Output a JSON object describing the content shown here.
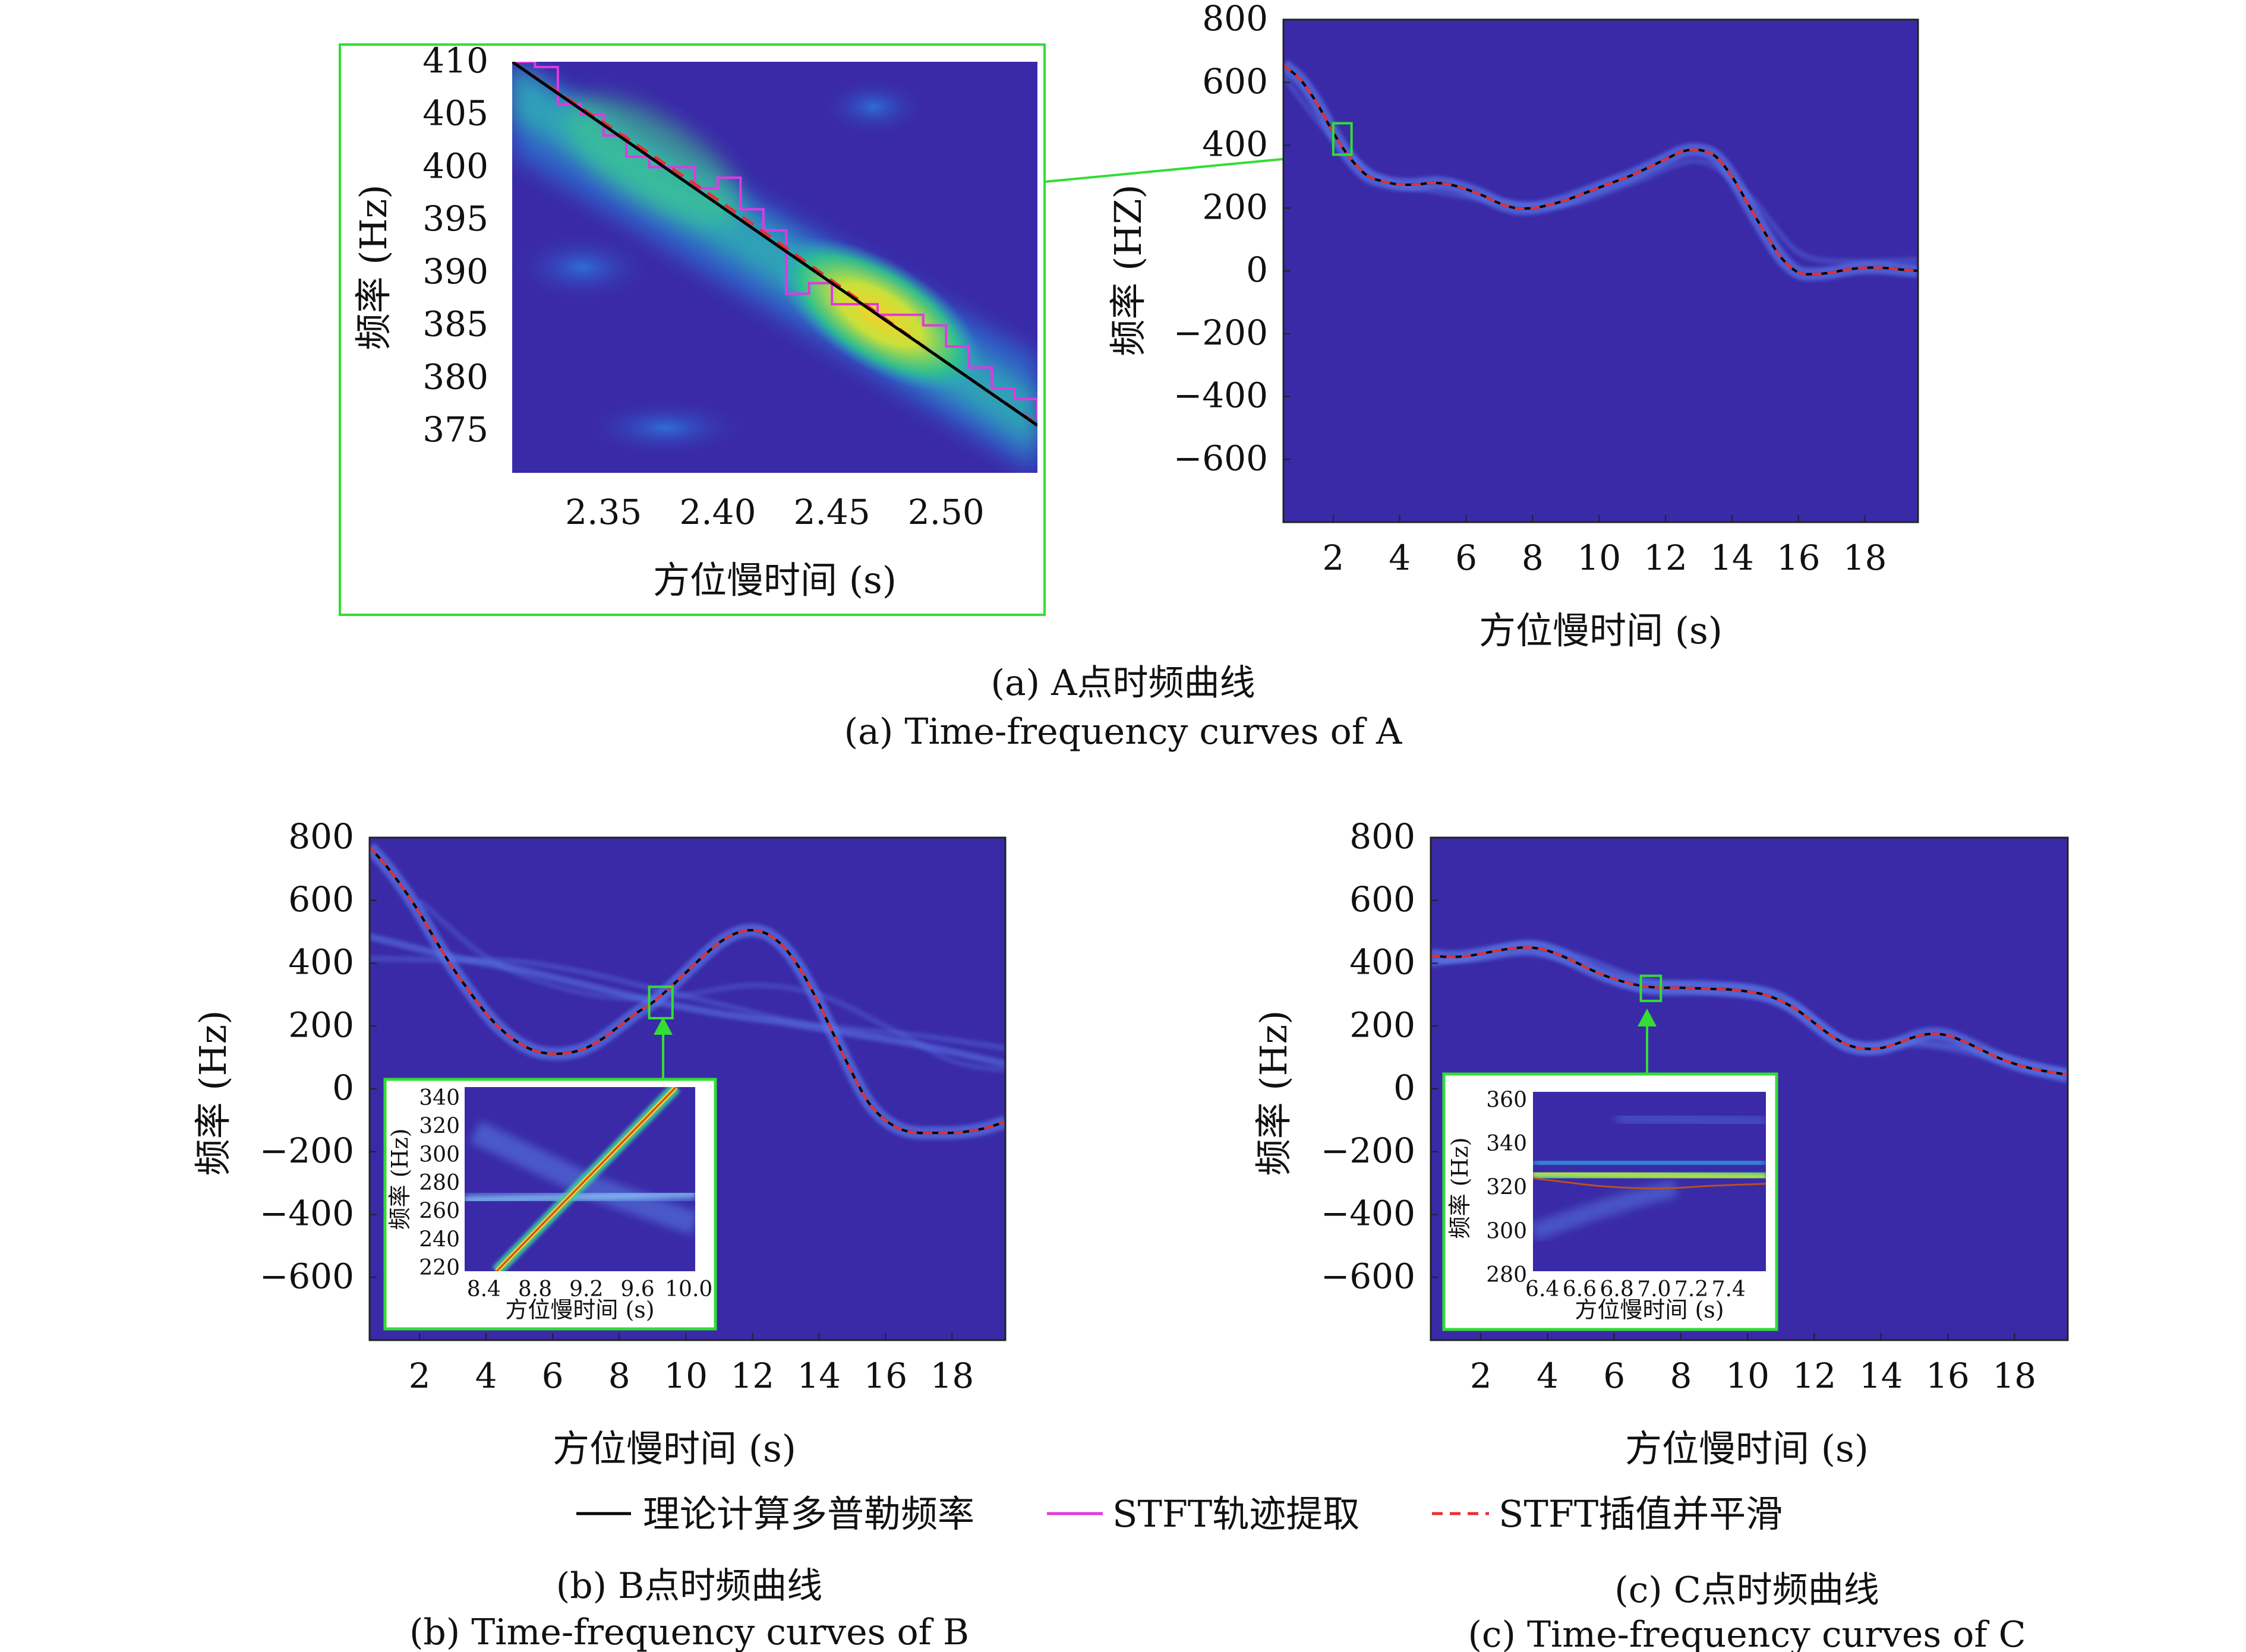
{
  "colors": {
    "background": "#3a2aa8",
    "theoretical": "#000000",
    "stft": "#e238e2",
    "smoothed": "#e83030",
    "zoom_box": "#33dd33",
    "track_glow": "#5a78e8"
  },
  "captions": {
    "a_cn": "(a) A点时频曲线",
    "a_en": "(a) Time-frequency curves of A",
    "b_cn": "(b) B点时频曲线",
    "b_en": "(b) Time-frequency curves of B",
    "c_cn": "(c) C点时频曲线",
    "c_en": "(c) Time-frequency curves of C"
  },
  "legend": [
    {
      "label": "理论计算多普勒频率",
      "style": "solid",
      "color": "#000000"
    },
    {
      "label": "STFT轨迹提取",
      "style": "solid",
      "color": "#e238e2"
    },
    {
      "label": "STFT插值并平滑",
      "style": "dashed",
      "color": "#e83030"
    }
  ],
  "chart_data": [
    {
      "id": "a_zoom",
      "type": "heatmap",
      "xlabel": "方位慢时间 (s)",
      "ylabel": "频率 (Hz)",
      "xlim": [
        2.31,
        2.54
      ],
      "ylim": [
        371,
        410
      ],
      "x_ticks": [
        "2.35",
        "2.40",
        "2.45",
        "2.50"
      ],
      "y_ticks": [
        "410",
        "405",
        "400",
        "395",
        "390",
        "385",
        "380",
        "375"
      ],
      "grid": false,
      "series": [
        {
          "name": "理论计算多普勒频率",
          "x": [
            2.31,
            2.54
          ],
          "y": [
            410,
            375.5
          ]
        },
        {
          "name": "STFT插值并平滑",
          "x": [
            2.31,
            2.4,
            2.5,
            2.54
          ],
          "y": [
            410,
            396.9,
            381.5,
            375.6
          ]
        },
        {
          "name": "STFT轨迹提取",
          "x": [
            2.31,
            2.32,
            2.33,
            2.34,
            2.35,
            2.36,
            2.37,
            2.38,
            2.39,
            2.4,
            2.41,
            2.42,
            2.43,
            2.44,
            2.45,
            2.46,
            2.47,
            2.48,
            2.49,
            2.5,
            2.51,
            2.52,
            2.53,
            2.54
          ],
          "y": [
            410,
            409.5,
            406,
            405,
            403,
            401,
            400,
            400,
            398,
            399,
            396,
            394,
            388,
            389,
            387,
            387,
            386,
            386,
            385,
            383,
            381,
            379,
            378,
            376
          ]
        }
      ]
    },
    {
      "id": "a_main",
      "type": "line",
      "xlabel": "方位慢时间 (s)",
      "ylabel": "频率 (HZ)",
      "xlim": [
        0.5,
        19.6
      ],
      "ylim": [
        -800,
        800
      ],
      "x_ticks": [
        "2",
        "4",
        "6",
        "8",
        "10",
        "12",
        "14",
        "16",
        "18"
      ],
      "y_ticks": [
        "800",
        "600",
        "400",
        "200",
        "0",
        "−200",
        "−400",
        "−600"
      ],
      "grid": false,
      "zoom_box": {
        "x": [
          2.0,
          2.55
        ],
        "y": [
          370,
          470
        ]
      },
      "series": [
        {
          "name": "STFT插值并平滑",
          "x": [
            0.5,
            1.0,
            1.5,
            2.0,
            2.5,
            3.0,
            3.5,
            4.0,
            4.5,
            5.0,
            5.5,
            6.0,
            6.5,
            7.0,
            7.5,
            8.0,
            8.5,
            9.0,
            9.5,
            10.0,
            10.5,
            11.0,
            11.5,
            12.0,
            12.5,
            13.0,
            13.5,
            14.0,
            14.5,
            15.0,
            15.5,
            16.0,
            16.5,
            17.0,
            17.5,
            18.0,
            18.5,
            19.0,
            19.6
          ],
          "y": [
            655,
            610,
            535,
            440,
            360,
            305,
            285,
            275,
            275,
            280,
            275,
            260,
            240,
            215,
            200,
            200,
            210,
            225,
            245,
            265,
            285,
            305,
            330,
            355,
            380,
            385,
            365,
            300,
            210,
            120,
            40,
            -5,
            -10,
            -5,
            5,
            10,
            10,
            5,
            0
          ]
        }
      ]
    },
    {
      "id": "b_main",
      "type": "line",
      "xlabel": "方位慢时间 (s)",
      "ylabel": "频率 (Hz)",
      "xlim": [
        0.5,
        19.6
      ],
      "ylim": [
        -800,
        800
      ],
      "x_ticks": [
        "2",
        "4",
        "6",
        "8",
        "10",
        "12",
        "14",
        "16",
        "18"
      ],
      "y_ticks": [
        "800",
        "600",
        "400",
        "200",
        "0",
        "−200",
        "−400",
        "−600"
      ],
      "grid": false,
      "zoom_box": {
        "x": [
          8.9,
          9.6
        ],
        "y": [
          225,
          325
        ]
      },
      "series": [
        {
          "name": "STFT插值并平滑",
          "x": [
            0.5,
            1.0,
            1.5,
            2.0,
            2.5,
            3.0,
            3.5,
            4.0,
            4.5,
            5.0,
            5.5,
            6.0,
            6.5,
            7.0,
            7.5,
            8.0,
            8.5,
            9.0,
            9.5,
            10.0,
            10.5,
            11.0,
            11.5,
            12.0,
            12.5,
            13.0,
            13.5,
            14.0,
            14.5,
            15.0,
            15.5,
            16.0,
            16.5,
            17.0,
            17.5,
            18.0,
            18.5,
            19.0,
            19.6
          ],
          "y": [
            770,
            710,
            640,
            560,
            470,
            385,
            310,
            240,
            185,
            145,
            120,
            112,
            115,
            130,
            160,
            200,
            240,
            275,
            320,
            370,
            420,
            465,
            495,
            505,
            490,
            445,
            370,
            270,
            160,
            50,
            -45,
            -100,
            -130,
            -140,
            -140,
            -140,
            -135,
            -125,
            -105
          ]
        }
      ]
    },
    {
      "id": "b_zoom",
      "type": "heatmap",
      "xlabel": "方位慢时间 (s)",
      "ylabel": "频率 (Hz)",
      "xlim": [
        8.25,
        10.05
      ],
      "ylim": [
        215,
        345
      ],
      "x_ticks": [
        "8.4",
        "8.8",
        "9.2",
        "9.6",
        "10.0"
      ],
      "y_ticks": [
        "340",
        "320",
        "300",
        "280",
        "260",
        "240",
        "220"
      ],
      "grid": false,
      "series": [
        {
          "name": "STFT插值并平滑",
          "x": [
            8.5,
            9.9
          ],
          "y": [
            215,
            345
          ]
        }
      ]
    },
    {
      "id": "c_main",
      "type": "line",
      "xlabel": "方位慢时间 (s)",
      "ylabel": "频率 (Hz)",
      "xlim": [
        0.5,
        19.6
      ],
      "ylim": [
        -800,
        800
      ],
      "x_ticks": [
        "2",
        "4",
        "6",
        "8",
        "10",
        "12",
        "14",
        "16",
        "18"
      ],
      "y_ticks": [
        "800",
        "600",
        "400",
        "200",
        "0",
        "−200",
        "−400",
        "−600"
      ],
      "grid": false,
      "zoom_box": {
        "x": [
          6.8,
          7.4
        ],
        "y": [
          280,
          360
        ]
      },
      "series": [
        {
          "name": "STFT插值并平滑",
          "x": [
            0.5,
            1.0,
            1.5,
            2.0,
            2.5,
            3.0,
            3.5,
            4.0,
            4.5,
            5.0,
            5.5,
            6.0,
            6.5,
            7.0,
            7.5,
            8.0,
            8.5,
            9.0,
            9.5,
            10.0,
            10.5,
            11.0,
            11.5,
            12.0,
            12.5,
            13.0,
            13.5,
            14.0,
            14.5,
            15.0,
            15.5,
            16.0,
            16.5,
            17.0,
            17.5,
            18.0,
            18.5,
            19.0,
            19.6
          ],
          "y": [
            425,
            420,
            422,
            430,
            440,
            448,
            450,
            440,
            420,
            395,
            370,
            350,
            335,
            325,
            322,
            322,
            320,
            318,
            316,
            310,
            300,
            280,
            250,
            210,
            170,
            140,
            128,
            130,
            145,
            165,
            175,
            170,
            150,
            125,
            100,
            80,
            65,
            55,
            45
          ]
        }
      ]
    },
    {
      "id": "c_zoom",
      "type": "heatmap",
      "xlabel": "方位慢时间 (s)",
      "ylabel": "频率 (Hz)",
      "xlim": [
        6.35,
        7.6
      ],
      "ylim": [
        280,
        362
      ],
      "x_ticks": [
        "6.4",
        "6.6",
        "6.8",
        "7.0",
        "7.2",
        "7.4"
      ],
      "y_ticks": [
        "360",
        "340",
        "320",
        "300",
        "280"
      ],
      "grid": false,
      "series": [
        {
          "name": "STFT插值并平滑",
          "x": [
            6.35,
            6.5,
            6.7,
            6.9,
            7.1,
            7.3,
            7.6
          ],
          "y": [
            322.5,
            321,
            319,
            318,
            318,
            319,
            320
          ]
        }
      ]
    }
  ]
}
